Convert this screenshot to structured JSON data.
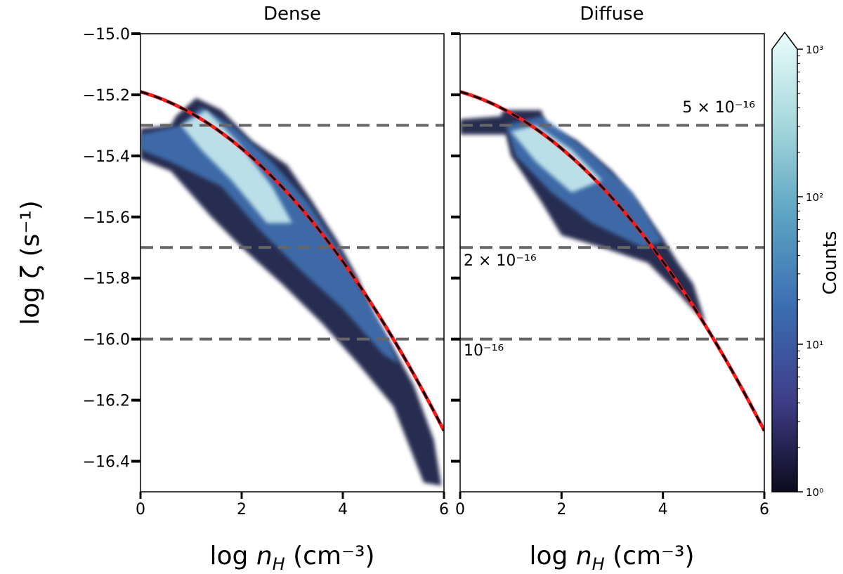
{
  "chart_data": {
    "type": "heatmap",
    "panels": [
      {
        "title": "Dense",
        "xlabel": "log n_H (cm^-3)",
        "regions": {
          "low": [
            [
              0,
              -15.31
            ],
            [
              0.6,
              -15.3
            ],
            [
              0.7,
              -15.27
            ],
            [
              1.1,
              -15.21
            ],
            [
              1.6,
              -15.25
            ],
            [
              2.2,
              -15.35
            ],
            [
              2.9,
              -15.43
            ],
            [
              3.4,
              -15.55
            ],
            [
              3.9,
              -15.68
            ],
            [
              4.3,
              -15.8
            ],
            [
              4.6,
              -15.92
            ],
            [
              5.0,
              -16.03
            ],
            [
              5.4,
              -16.15
            ],
            [
              5.8,
              -16.33
            ],
            [
              5.95,
              -16.48
            ],
            [
              5.6,
              -16.47
            ],
            [
              5.0,
              -16.22
            ],
            [
              4.3,
              -16.08
            ],
            [
              3.6,
              -15.95
            ],
            [
              2.8,
              -15.82
            ],
            [
              2.0,
              -15.7
            ],
            [
              1.4,
              -15.6
            ],
            [
              0.6,
              -15.45
            ],
            [
              0,
              -15.41
            ]
          ],
          "mid": [
            [
              0,
              -15.33
            ],
            [
              0.8,
              -15.3
            ],
            [
              1.2,
              -15.24
            ],
            [
              1.8,
              -15.3
            ],
            [
              2.6,
              -15.42
            ],
            [
              3.3,
              -15.55
            ],
            [
              3.9,
              -15.7
            ],
            [
              4.4,
              -15.85
            ],
            [
              4.9,
              -16.0
            ],
            [
              5.1,
              -16.08
            ],
            [
              4.8,
              -16.05
            ],
            [
              4.0,
              -15.9
            ],
            [
              3.2,
              -15.78
            ],
            [
              2.4,
              -15.65
            ],
            [
              1.6,
              -15.5
            ],
            [
              0.6,
              -15.42
            ],
            [
              0,
              -15.38
            ]
          ],
          "high": [
            [
              0.8,
              -15.3
            ],
            [
              1.3,
              -15.25
            ],
            [
              1.9,
              -15.35
            ],
            [
              2.6,
              -15.5
            ],
            [
              3.0,
              -15.62
            ],
            [
              2.5,
              -15.62
            ],
            [
              1.8,
              -15.48
            ],
            [
              1.2,
              -15.38
            ]
          ]
        }
      },
      {
        "title": "Diffuse",
        "xlabel": "log n_H (cm^-3)",
        "regions": {
          "low": [
            [
              0,
              -15.28
            ],
            [
              0.8,
              -15.27
            ],
            [
              0.85,
              -15.25
            ],
            [
              1.6,
              -15.25
            ],
            [
              1.7,
              -15.3
            ],
            [
              2.3,
              -15.35
            ],
            [
              3.0,
              -15.45
            ],
            [
              3.5,
              -15.55
            ],
            [
              4.0,
              -15.67
            ],
            [
              4.3,
              -15.75
            ],
            [
              4.6,
              -15.82
            ],
            [
              4.85,
              -15.95
            ],
            [
              4.3,
              -15.85
            ],
            [
              3.7,
              -15.75
            ],
            [
              2.8,
              -15.7
            ],
            [
              2.0,
              -15.66
            ],
            [
              1.6,
              -15.55
            ],
            [
              1.0,
              -15.4
            ],
            [
              0.9,
              -15.33
            ],
            [
              0,
              -15.33
            ]
          ],
          "mid": [
            [
              0.9,
              -15.3
            ],
            [
              1.6,
              -15.27
            ],
            [
              2.5,
              -15.38
            ],
            [
              3.4,
              -15.52
            ],
            [
              4.0,
              -15.68
            ],
            [
              3.6,
              -15.7
            ],
            [
              2.6,
              -15.62
            ],
            [
              1.8,
              -15.52
            ],
            [
              1.1,
              -15.4
            ]
          ],
          "high": [
            [
              1.0,
              -15.32
            ],
            [
              1.5,
              -15.3
            ],
            [
              2.2,
              -15.38
            ],
            [
              2.8,
              -15.48
            ],
            [
              2.2,
              -15.52
            ],
            [
              1.5,
              -15.42
            ]
          ]
        }
      }
    ],
    "ylabel": "log ζ (s⁻¹)",
    "xlabel_text": "log n",
    "xlabel_sub": "H",
    "xlabel_unit": " (cm⁻³)",
    "xlim": [
      0,
      6
    ],
    "ylim": [
      -16.5,
      -15.0
    ],
    "xticks": [
      "0",
      "2",
      "4",
      "6"
    ],
    "yticks": [
      "−15.0",
      "−15.2",
      "−15.4",
      "−15.6",
      "−15.8",
      "−16.0",
      "−16.2",
      "−16.4"
    ],
    "hlines": [
      {
        "y": -15.3,
        "label": "5 × 10⁻¹⁶"
      },
      {
        "y": -15.7,
        "label": "2 × 10⁻¹⁶"
      },
      {
        "y": -16.0,
        "label": "10⁻¹⁶"
      }
    ],
    "fit_curve": {
      "a": -15.19,
      "b": -0.047,
      "c": -0.023
    },
    "colorbar": {
      "label": "Counts",
      "scale": "log",
      "range": [
        1,
        1000
      ],
      "ticks": [
        "10⁰",
        "10¹",
        "10²",
        "10³"
      ],
      "colors": [
        "#0b0b1c",
        "#3f3e88",
        "#3b6db2",
        "#5ca3c2",
        "#a6d8dc",
        "#eafcfc"
      ]
    },
    "colors": {
      "low": "#1d2147",
      "mid": "#3f71b1",
      "high": "#c9ecef",
      "fit": "#ff1a1a",
      "hline": "#666666"
    }
  }
}
